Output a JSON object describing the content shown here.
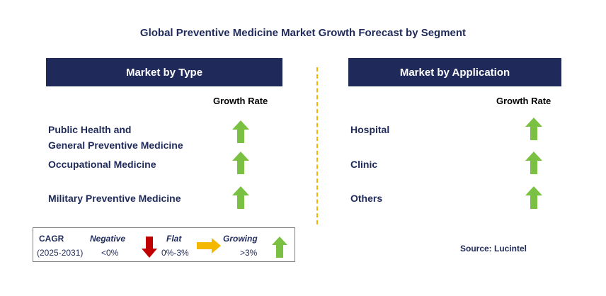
{
  "title": "Global Preventive Medicine Market Growth Forecast by Segment",
  "left_panel": {
    "header": "Market by Type",
    "growth_label": "Growth Rate",
    "items": [
      {
        "label_line1": "Public Health and",
        "label_line2": "General Preventive Medicine",
        "trend": "growing"
      },
      {
        "label_line1": "Occupational Medicine",
        "trend": "growing"
      },
      {
        "label_line1": "Military Preventive Medicine",
        "trend": "growing"
      }
    ]
  },
  "right_panel": {
    "header": "Market by Application",
    "growth_label": "Growth Rate",
    "items": [
      {
        "label": "Hospital",
        "trend": "growing"
      },
      {
        "label": "Clinic",
        "trend": "growing"
      },
      {
        "label": "Others",
        "trend": "growing"
      }
    ]
  },
  "legend": {
    "cagr": "CAGR",
    "period": "(2025-2031)",
    "negative_label": "Negative",
    "negative_value": "<0%",
    "flat_label": "Flat",
    "flat_value": "0%-3%",
    "growing_label": "Growing",
    "growing_value": ">3%"
  },
  "source": "Source: Lucintel",
  "colors": {
    "navy": "#1f2a5a",
    "green_arrow": "#7ac143",
    "red_arrow": "#c00000",
    "yellow_arrow": "#f5b800",
    "divider": "#f2b705"
  }
}
